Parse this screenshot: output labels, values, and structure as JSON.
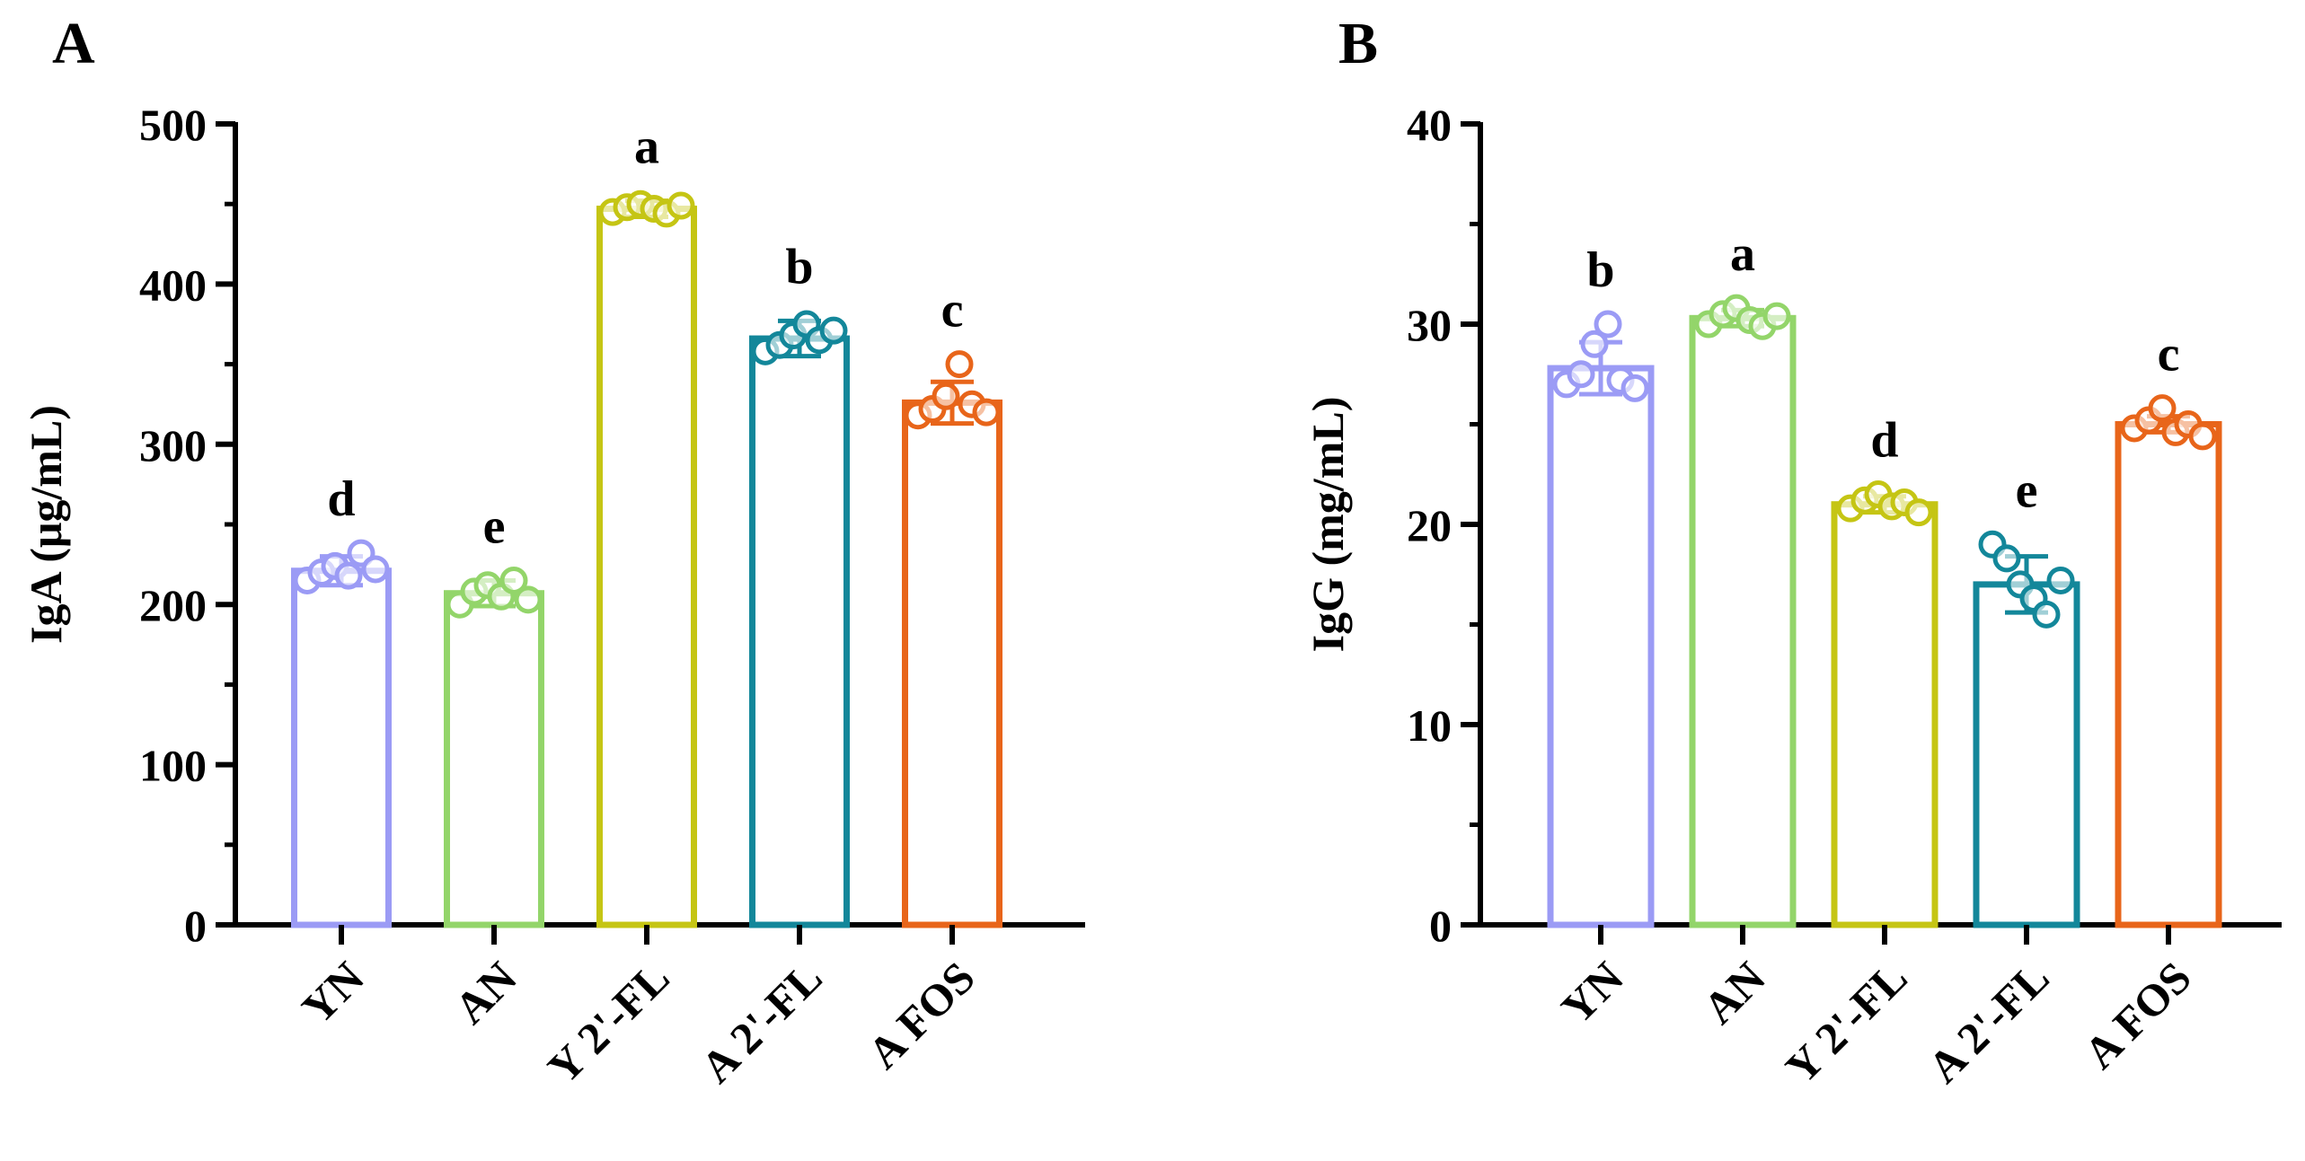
{
  "chart_data": [
    {
      "type": "bar",
      "panel_label": "A",
      "title": "",
      "xlabel": "",
      "ylabel": "IgA (μg/mL)",
      "ylim": [
        0,
        500
      ],
      "yticks": [
        "0",
        "100",
        "200",
        "300",
        "400",
        "500"
      ],
      "categories": [
        "YN",
        "AN",
        "Y 2'-FL",
        "A 2'-FL",
        "A FOS"
      ],
      "values": [
        221,
        207,
        447,
        366,
        326
      ],
      "error": [
        9,
        8,
        5,
        11,
        13
      ],
      "significance": [
        "d",
        "e",
        "a",
        "b",
        "c"
      ],
      "points": [
        [
          215,
          220,
          224,
          218,
          232,
          222
        ],
        [
          200,
          208,
          212,
          205,
          215,
          203
        ],
        [
          445,
          448,
          450,
          447,
          444,
          449
        ],
        [
          358,
          362,
          368,
          375,
          365,
          371
        ],
        [
          318,
          322,
          330,
          350,
          325,
          320
        ]
      ],
      "colors": [
        "#9b9bf5",
        "#93d56a",
        "#c5c514",
        "#13879a",
        "#e8651a"
      ]
    },
    {
      "type": "bar",
      "panel_label": "B",
      "title": "",
      "xlabel": "",
      "ylabel": "IgG (mg/mL)",
      "ylim": [
        0,
        40
      ],
      "yticks": [
        "0",
        "10",
        "20",
        "30",
        "40"
      ],
      "categories": [
        "YN",
        "AN",
        "Y 2'-FL",
        "A 2'-FL",
        "A FOS"
      ],
      "values": [
        27.8,
        30.3,
        21.0,
        17.0,
        25.0
      ],
      "error": [
        1.3,
        0.4,
        0.4,
        1.4,
        0.4
      ],
      "significance": [
        "b",
        "a",
        "d",
        "e",
        "c"
      ],
      "points": [
        [
          27.0,
          27.5,
          29.0,
          30.0,
          27.2,
          26.8
        ],
        [
          30.0,
          30.5,
          30.8,
          30.2,
          29.9,
          30.4
        ],
        [
          20.8,
          21.2,
          21.5,
          20.9,
          21.1,
          20.6
        ],
        [
          19.0,
          18.3,
          17.0,
          16.3,
          15.5,
          17.2
        ],
        [
          24.8,
          25.2,
          25.8,
          24.6,
          25.0,
          24.4
        ]
      ],
      "colors": [
        "#9b9bf5",
        "#93d56a",
        "#c5c514",
        "#13879a",
        "#e8651a"
      ]
    }
  ]
}
